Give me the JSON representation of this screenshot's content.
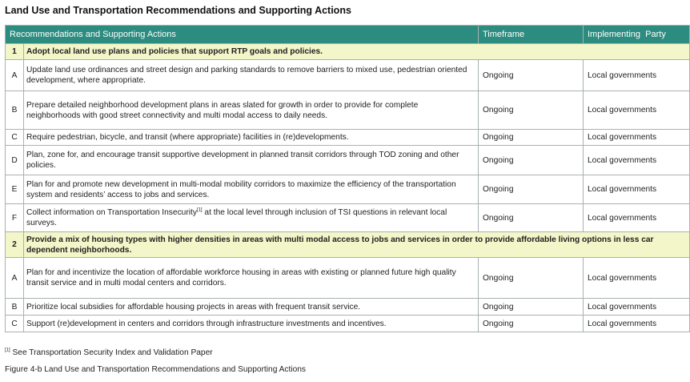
{
  "title": "Land Use and Transportation Recommendations and Supporting Actions",
  "columns": [
    "Recommendations and Supporting Actions",
    "Timeframe",
    "Implementing  Party"
  ],
  "rows": [
    {
      "kind": "section",
      "id": "1",
      "text": "Adopt local land use plans and policies that support RTP goals and policies."
    },
    {
      "kind": "action",
      "id": "A",
      "text": "Update land use ordinances and street design and parking standards to remove barriers to mixed use, pedestrian oriented development, where appropriate.",
      "timeframe": "Ongoing",
      "party": "Local governments"
    },
    {
      "kind": "action",
      "id": "B",
      "text": "Prepare detailed neighborhood development plans in areas slated for growth in order to provide for complete neighborhoods with good street connectivity and multi modal access to daily needs.",
      "timeframe": "Ongoing",
      "party": "Local governments"
    },
    {
      "kind": "action",
      "id": "C",
      "text": "Require pedestrian, bicycle, and transit (where appropriate) facilities in (re)developments.",
      "timeframe": "Ongoing",
      "party": "Local governments"
    },
    {
      "kind": "action",
      "id": "D",
      "text": "Plan, zone for, and encourage transit supportive development in planned transit corridors through TOD zoning and other policies.",
      "timeframe": "Ongoing",
      "party": "Local governments"
    },
    {
      "kind": "action",
      "id": "E",
      "text": "Plan for and promote new development in multi-modal mobility corridors to maximize the efficiency of the transportation system and residents’ access to jobs and services.",
      "timeframe": "Ongoing",
      "party": "Local governments"
    },
    {
      "kind": "action",
      "id": "F",
      "text_before": "Collect information on Transportation Insecurity",
      "sup": "[1]",
      "text_after": " at the local level through inclusion of TSI questions in relevant local surveys.",
      "timeframe": "Ongoing",
      "party": "Local governments"
    },
    {
      "kind": "section",
      "id": "2",
      "text": "Provide a mix of housing types with higher densities in areas with multi modal access to jobs and services in order to provide affordable living options in less car dependent neighborhoods."
    },
    {
      "kind": "action",
      "id": "A",
      "text": "Plan for and incentivize the location of affordable workforce housing in areas with existing or planned future high quality transit service and in multi modal centers and corridors.",
      "timeframe": "Ongoing",
      "party": "Local governments"
    },
    {
      "kind": "action",
      "id": "B",
      "text": "Prioritize local subsidies for affordable housing projects in areas with frequent transit service.",
      "timeframe": "Ongoing",
      "party": "Local governments"
    },
    {
      "kind": "action",
      "id": "C",
      "text": "Support (re)development in centers and corridors through infrastructure investments and incentives.",
      "timeframe": "Ongoing",
      "party": "Local governments"
    }
  ],
  "footnote": {
    "mark": "[1]",
    "text": " See Transportation Security Index and Validation Paper"
  },
  "caption": "Figure 4-b Land Use and Transportation Recommendations and Supporting Actions"
}
